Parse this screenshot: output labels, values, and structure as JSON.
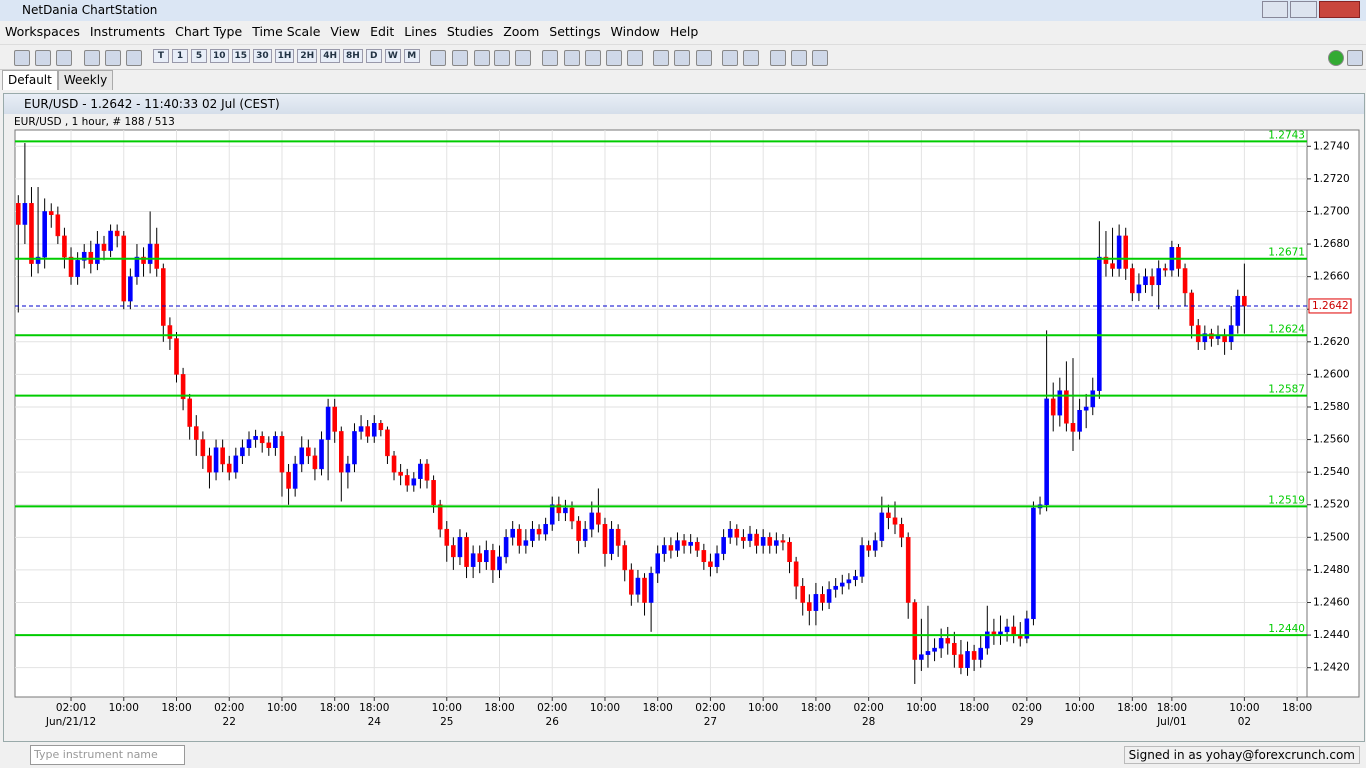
{
  "window": {
    "title": "NetDania ChartStation"
  },
  "menu": [
    "Workspaces",
    "Instruments",
    "Chart Type",
    "Time Scale",
    "View",
    "Edit",
    "Lines",
    "Studies",
    "Zoom",
    "Settings",
    "Window",
    "Help"
  ],
  "toolbar": {
    "periods": [
      "T",
      "1",
      "5",
      "10",
      "15",
      "30",
      "1H",
      "2H",
      "4H",
      "8H",
      "D",
      "W",
      "M"
    ]
  },
  "tabs": [
    "Default",
    "Weekly"
  ],
  "chart_window": {
    "title": "EUR/USD - 1.2642 - 11:40:33  02 Jul (CEST)"
  },
  "chart_data": {
    "type": "candlestick",
    "subtitle": "EUR/USD , 1 hour, # 188 / 513",
    "categories": [
      null,
      null,
      null,
      null,
      null,
      null,
      null,
      null,
      "02:00",
      null,
      null,
      null,
      null,
      null,
      null,
      null,
      "10:00",
      null,
      null,
      null,
      null,
      null,
      null,
      null,
      "18:00",
      null,
      null,
      null,
      null,
      null,
      null,
      null,
      "02:00",
      null,
      null,
      null,
      null,
      null,
      null,
      null,
      "10:00",
      null,
      null,
      null,
      null,
      null,
      null,
      null,
      "18:00",
      null,
      null,
      null,
      null,
      null,
      "18:00",
      null,
      null,
      null,
      null,
      null,
      null,
      null,
      null,
      null,
      null,
      "10:00",
      null,
      null,
      null,
      null,
      null,
      null,
      null,
      "18:00",
      null,
      null,
      null,
      null,
      null,
      null,
      null,
      "02:00",
      null,
      null,
      null,
      null,
      null,
      null,
      null,
      "10:00",
      null,
      null,
      null,
      null,
      null,
      null,
      null,
      "18:00",
      null,
      null,
      null,
      null,
      null,
      null,
      null,
      "02:00",
      null,
      null,
      null,
      null,
      null,
      null,
      null,
      "10:00",
      null,
      null,
      null,
      null,
      null,
      null,
      null,
      "18:00",
      null,
      null,
      null,
      null,
      null,
      null,
      null,
      "02:00",
      null,
      null,
      null,
      null,
      null,
      null,
      null,
      "10:00",
      null,
      null,
      null,
      null,
      null,
      null,
      null,
      "18:00",
      null,
      null,
      null,
      null,
      null,
      null,
      null,
      "02:00",
      null,
      null,
      null,
      null,
      null,
      null,
      null,
      "10:00",
      null,
      null,
      null,
      null,
      null,
      null,
      null,
      "18:00",
      null,
      null,
      null,
      null,
      null,
      "18:00",
      null,
      null,
      null,
      null,
      null,
      null,
      null,
      null,
      null,
      null,
      "10:00",
      null,
      null,
      null,
      null,
      null,
      null,
      null,
      "18:00",
      null
    ],
    "date_labels": [
      null,
      null,
      null,
      null,
      null,
      null,
      null,
      null,
      "Jun/21/12",
      null,
      null,
      null,
      null,
      null,
      null,
      null,
      null,
      null,
      null,
      null,
      null,
      null,
      null,
      null,
      null,
      null,
      null,
      null,
      null,
      null,
      null,
      null,
      "22",
      null,
      null,
      null,
      null,
      null,
      null,
      null,
      null,
      null,
      null,
      null,
      null,
      null,
      null,
      null,
      null,
      null,
      null,
      null,
      null,
      null,
      "24",
      null,
      null,
      null,
      null,
      null,
      null,
      null,
      null,
      null,
      null,
      "25",
      null,
      null,
      null,
      null,
      null,
      null,
      null,
      null,
      null,
      null,
      null,
      null,
      null,
      null,
      null,
      "26",
      null,
      null,
      null,
      null,
      null,
      null,
      null,
      null,
      null,
      null,
      null,
      null,
      null,
      null,
      null,
      null,
      null,
      null,
      null,
      null,
      null,
      null,
      null,
      "27",
      null,
      null,
      null,
      null,
      null,
      null,
      null,
      null,
      null,
      null,
      null,
      null,
      null,
      null,
      null,
      null,
      null,
      null,
      null,
      null,
      null,
      null,
      null,
      "28",
      null,
      null,
      null,
      null,
      null,
      null,
      null,
      null,
      null,
      null,
      null,
      null,
      null,
      null,
      null,
      null,
      null,
      null,
      null,
      null,
      null,
      null,
      null,
      "29",
      null,
      null,
      null,
      null,
      null,
      null,
      null,
      null,
      null,
      null,
      null,
      null,
      null,
      null,
      null,
      null,
      null,
      null,
      null,
      null,
      null,
      "Jul/01",
      null,
      null,
      null,
      null,
      null,
      null,
      null,
      null,
      null,
      null,
      "02",
      null,
      null,
      null,
      null,
      null,
      null,
      null,
      null,
      null
    ],
    "open": [
      1.2705,
      1.2692,
      1.2705,
      1.2668,
      1.2672,
      1.27,
      1.2698,
      1.2685,
      1.2672,
      1.266,
      1.267,
      1.2675,
      1.2668,
      1.268,
      1.2676,
      1.2688,
      1.2685,
      1.2645,
      1.266,
      1.2672,
      1.2668,
      1.268,
      1.2665,
      1.263,
      1.2622,
      1.26,
      1.2585,
      1.2568,
      1.256,
      1.255,
      1.254,
      1.2555,
      1.2545,
      1.254,
      1.255,
      1.2555,
      1.256,
      1.2562,
      1.2558,
      1.2555,
      1.2562,
      1.254,
      1.253,
      1.2545,
      1.2555,
      1.255,
      1.2542,
      1.256,
      1.258,
      1.2565,
      1.254,
      1.2545,
      1.2565,
      1.2568,
      1.2562,
      1.257,
      1.2566,
      1.255,
      1.254,
      1.2538,
      1.2532,
      1.2536,
      1.2545,
      1.2535,
      1.252,
      1.2505,
      1.2495,
      1.2488,
      1.25,
      1.2482,
      1.249,
      1.2485,
      1.2492,
      1.248,
      1.2488,
      1.25,
      1.2505,
      1.2495,
      1.2498,
      1.2505,
      1.2502,
      1.2508,
      1.252,
      1.2515,
      1.2518,
      1.251,
      1.2498,
      1.2505,
      1.2515,
      1.2508,
      1.249,
      1.2505,
      1.2495,
      1.248,
      1.2465,
      1.2475,
      1.246,
      1.2478,
      1.249,
      1.2495,
      1.2492,
      1.2498,
      1.2495,
      1.2497,
      1.2492,
      1.2485,
      1.2482,
      1.249,
      1.25,
      1.2505,
      1.25,
      1.2498,
      1.2502,
      1.2495,
      1.25,
      1.2495,
      1.2498,
      1.2497,
      1.2485,
      1.247,
      1.246,
      1.2455,
      1.2465,
      1.246,
      1.2468,
      1.247,
      1.2472,
      1.2474,
      1.2476,
      1.2495,
      1.2492,
      1.2498,
      1.2515,
      1.2512,
      1.2508,
      1.25,
      1.246,
      1.2425,
      1.2428,
      1.243,
      1.2432,
      1.2438,
      1.2435,
      1.2428,
      1.242,
      1.243,
      1.2425,
      1.2432,
      1.2442,
      1.244,
      1.2442,
      1.2445,
      1.244,
      1.2438,
      1.245,
      1.2518,
      1.252,
      1.2585,
      1.2575,
      1.259,
      1.257,
      1.2565,
      1.2578,
      1.258,
      1.259,
      1.2672,
      1.2668,
      1.2665,
      1.2685,
      1.2665,
      1.265,
      1.2655,
      1.266,
      1.2655,
      1.2665,
      1.2664,
      1.2678,
      1.2665,
      1.265,
      1.263,
      1.262,
      1.2625,
      1.2622,
      1.2624,
      1.262,
      1.263,
      1.2648,
      null,
      null,
      null,
      null,
      null,
      null,
      null,
      null,
      null
    ],
    "high": [
      1.271,
      1.2742,
      1.2715,
      1.2715,
      1.2708,
      1.2705,
      1.2703,
      1.269,
      1.2678,
      1.2675,
      1.268,
      1.2682,
      1.2688,
      1.2685,
      1.2692,
      1.2692,
      1.2688,
      1.2665,
      1.268,
      1.2678,
      1.27,
      1.269,
      1.2668,
      1.2635,
      1.2626,
      1.2604,
      1.2588,
      1.2575,
      1.2565,
      1.2555,
      1.256,
      1.256,
      1.255,
      1.2555,
      1.256,
      1.2565,
      1.2566,
      1.2565,
      1.2562,
      1.2565,
      1.2565,
      1.2545,
      1.255,
      1.2562,
      1.256,
      1.2555,
      1.2565,
      1.2585,
      1.2585,
      1.2568,
      1.255,
      1.257,
      1.2575,
      1.2572,
      1.2575,
      1.2572,
      1.2568,
      1.2553,
      1.2545,
      1.2542,
      1.254,
      1.2548,
      1.2548,
      1.2538,
      1.2523,
      1.251,
      1.25,
      1.2505,
      1.2503,
      1.2495,
      1.2495,
      1.2498,
      1.2496,
      1.2495,
      1.2505,
      1.251,
      1.2508,
      1.2505,
      1.251,
      1.2508,
      1.2512,
      1.2525,
      1.2525,
      1.2523,
      1.2522,
      1.2513,
      1.251,
      1.2522,
      1.253,
      1.2512,
      1.251,
      1.2508,
      1.2498,
      1.2484,
      1.248,
      1.2478,
      1.2482,
      1.2495,
      1.25,
      1.25,
      1.2503,
      1.2502,
      1.2502,
      1.25,
      1.2496,
      1.249,
      1.2495,
      1.2505,
      1.251,
      1.2508,
      1.2505,
      1.2507,
      1.2505,
      1.2505,
      1.2503,
      1.2503,
      1.2502,
      1.25,
      1.2488,
      1.2475,
      1.2465,
      1.2472,
      1.247,
      1.2473,
      1.2475,
      1.2477,
      1.2478,
      1.248,
      1.25,
      1.2498,
      1.2503,
      1.2525,
      1.252,
      1.2522,
      1.2512,
      1.2503,
      1.2462,
      1.245,
      1.2458,
      1.2438,
      1.2444,
      1.2445,
      1.2442,
      1.2437,
      1.2436,
      1.2434,
      1.244,
      1.2458,
      1.245,
      1.2452,
      1.245,
      1.2452,
      1.2448,
      1.2455,
      1.2522,
      1.2525,
      1.2627,
      1.2595,
      1.2598,
      1.2608,
      1.261,
      1.2585,
      1.2588,
      1.2598,
      1.2694,
      1.2688,
      1.269,
      1.2692,
      1.269,
      1.2668,
      1.2662,
      1.2665,
      1.2665,
      1.267,
      1.2668,
      1.2682,
      1.268,
      1.2668,
      1.2652,
      1.2634,
      1.263,
      1.2628,
      1.263,
      1.2628,
      1.2642,
      1.2652,
      1.2668,
      null,
      null,
      null,
      null,
      null,
      null,
      null,
      null,
      null
    ],
    "low": [
      1.2638,
      1.268,
      1.266,
      1.2662,
      1.2665,
      1.269,
      1.268,
      1.2665,
      1.2655,
      1.2655,
      1.2665,
      1.2662,
      1.2664,
      1.267,
      1.2672,
      1.2678,
      1.264,
      1.264,
      1.2655,
      1.266,
      1.2662,
      1.266,
      1.262,
      1.2615,
      1.2595,
      1.2578,
      1.256,
      1.255,
      1.2542,
      1.253,
      1.2535,
      1.254,
      1.2535,
      1.2536,
      1.2545,
      1.255,
      1.2555,
      1.2552,
      1.255,
      1.255,
      1.2525,
      1.252,
      1.2525,
      1.254,
      1.2545,
      1.2535,
      1.2538,
      1.2535,
      1.2558,
      1.2522,
      1.253,
      1.254,
      1.256,
      1.2558,
      1.2558,
      1.2562,
      1.2545,
      1.2535,
      1.2532,
      1.2528,
      1.2528,
      1.253,
      1.253,
      1.2515,
      1.25,
      1.2485,
      1.248,
      1.2483,
      1.2475,
      1.2475,
      1.2478,
      1.248,
      1.2472,
      1.2475,
      1.2484,
      1.2495,
      1.249,
      1.249,
      1.2494,
      1.2498,
      1.2498,
      1.2504,
      1.251,
      1.251,
      1.2505,
      1.249,
      1.2494,
      1.25,
      1.2503,
      1.2482,
      1.2486,
      1.2488,
      1.2473,
      1.2458,
      1.246,
      1.2452,
      1.2442,
      1.2472,
      1.2485,
      1.2487,
      1.2488,
      1.249,
      1.249,
      1.2488,
      1.248,
      1.2476,
      1.2478,
      1.2486,
      1.2496,
      1.2495,
      1.2493,
      1.2494,
      1.249,
      1.249,
      1.249,
      1.249,
      1.2492,
      1.2478,
      1.2462,
      1.2452,
      1.2446,
      1.2446,
      1.2455,
      1.2456,
      1.2463,
      1.2465,
      1.2468,
      1.247,
      1.2472,
      1.2488,
      1.2488,
      1.2494,
      1.2505,
      1.2502,
      1.2494,
      1.245,
      1.241,
      1.2418,
      1.242,
      1.2424,
      1.2426,
      1.2428,
      1.242,
      1.2416,
      1.2415,
      1.2418,
      1.242,
      1.2428,
      1.2434,
      1.2434,
      1.2436,
      1.2435,
      1.2433,
      1.2435,
      1.2446,
      1.2514,
      1.2516,
      1.2565,
      1.2568,
      1.2565,
      1.2553,
      1.256,
      1.2567,
      1.2575,
      1.2585,
      1.266,
      1.266,
      1.266,
      1.2658,
      1.2645,
      1.2645,
      1.265,
      1.2648,
      1.264,
      1.266,
      1.266,
      1.266,
      1.2642,
      1.2622,
      1.2615,
      1.2615,
      1.2617,
      1.2618,
      1.2612,
      1.2615,
      1.2625,
      1.2625,
      null,
      null,
      null,
      null,
      null,
      null,
      null,
      null,
      null
    ],
    "close": [
      1.2692,
      1.2705,
      1.2668,
      1.2672,
      1.27,
      1.2698,
      1.2685,
      1.2672,
      1.266,
      1.267,
      1.2675,
      1.2668,
      1.268,
      1.2676,
      1.2688,
      1.2685,
      1.2645,
      1.266,
      1.2672,
      1.2668,
      1.268,
      1.2665,
      1.263,
      1.2622,
      1.26,
      1.2585,
      1.2568,
      1.256,
      1.255,
      1.254,
      1.2555,
      1.2545,
      1.254,
      1.255,
      1.2555,
      1.256,
      1.2562,
      1.2558,
      1.2555,
      1.2562,
      1.254,
      1.253,
      1.2545,
      1.2555,
      1.255,
      1.2542,
      1.256,
      1.258,
      1.2565,
      1.254,
      1.2545,
      1.2565,
      1.2568,
      1.2562,
      1.257,
      1.2566,
      1.255,
      1.254,
      1.2538,
      1.2532,
      1.2536,
      1.2545,
      1.2535,
      1.252,
      1.2505,
      1.2495,
      1.2488,
      1.25,
      1.2482,
      1.249,
      1.2485,
      1.2492,
      1.248,
      1.2488,
      1.25,
      1.2505,
      1.2495,
      1.2498,
      1.2505,
      1.2502,
      1.2508,
      1.252,
      1.2515,
      1.2518,
      1.251,
      1.2498,
      1.2505,
      1.2515,
      1.2508,
      1.249,
      1.2505,
      1.2495,
      1.248,
      1.2465,
      1.2475,
      1.246,
      1.2478,
      1.249,
      1.2495,
      1.2492,
      1.2498,
      1.2495,
      1.2497,
      1.2492,
      1.2485,
      1.2482,
      1.249,
      1.25,
      1.2505,
      1.25,
      1.2498,
      1.2502,
      1.2495,
      1.25,
      1.2495,
      1.2498,
      1.2497,
      1.2485,
      1.247,
      1.246,
      1.2455,
      1.2465,
      1.246,
      1.2468,
      1.247,
      1.2472,
      1.2474,
      1.2476,
      1.2495,
      1.2492,
      1.2498,
      1.2515,
      1.2512,
      1.2508,
      1.25,
      1.246,
      1.2425,
      1.2428,
      1.243,
      1.2432,
      1.2438,
      1.2435,
      1.2428,
      1.242,
      1.243,
      1.2425,
      1.2432,
      1.2442,
      1.244,
      1.2442,
      1.2445,
      1.244,
      1.2438,
      1.245,
      1.2518,
      1.252,
      1.2585,
      1.2575,
      1.259,
      1.257,
      1.2565,
      1.2578,
      1.258,
      1.259,
      1.2672,
      1.2668,
      1.2665,
      1.2685,
      1.2665,
      1.265,
      1.2655,
      1.266,
      1.2655,
      1.2665,
      1.2664,
      1.2678,
      1.2665,
      1.265,
      1.263,
      1.262,
      1.2625,
      1.2622,
      1.2624,
      1.262,
      1.263,
      1.2648,
      1.2642,
      null,
      null,
      null,
      null,
      null,
      null,
      null,
      null,
      null
    ],
    "up_color": "#0000ff",
    "down_color": "#ff0000",
    "ylim": [
      1.2402,
      1.275
    ],
    "yticks": [
      {
        "value": 1.242,
        "label": "1.2420"
      },
      {
        "value": 1.244,
        "label": "1.2440"
      },
      {
        "value": 1.246,
        "label": "1.2460"
      },
      {
        "value": 1.248,
        "label": "1.2480"
      },
      {
        "value": 1.25,
        "label": "1.2500"
      },
      {
        "value": 1.252,
        "label": "1.2520"
      },
      {
        "value": 1.254,
        "label": "1.2540"
      },
      {
        "value": 1.256,
        "label": "1.2560"
      },
      {
        "value": 1.258,
        "label": "1.2580"
      },
      {
        "value": 1.26,
        "label": "1.2600"
      },
      {
        "value": 1.262,
        "label": "1.2620"
      },
      {
        "value": 1.264,
        "label": "1.2640"
      },
      {
        "value": 1.266,
        "label": "1.2660"
      },
      {
        "value": 1.268,
        "label": "1.2680"
      },
      {
        "value": 1.27,
        "label": "1.2700"
      },
      {
        "value": 1.272,
        "label": "1.2720"
      },
      {
        "value": 1.274,
        "label": "1.2740"
      }
    ],
    "levels": [
      1.2743,
      1.2671,
      1.2624,
      1.2587,
      1.2519,
      {
        "value": 1.244,
        "label": "1.2440"
      }
    ],
    "level_color": "#00cc00",
    "current_price": 1.2642,
    "grid": true
  },
  "status": {
    "search_placeholder": "Type instrument name",
    "signed_in": "Signed in as yohay@forexcrunch.com"
  }
}
